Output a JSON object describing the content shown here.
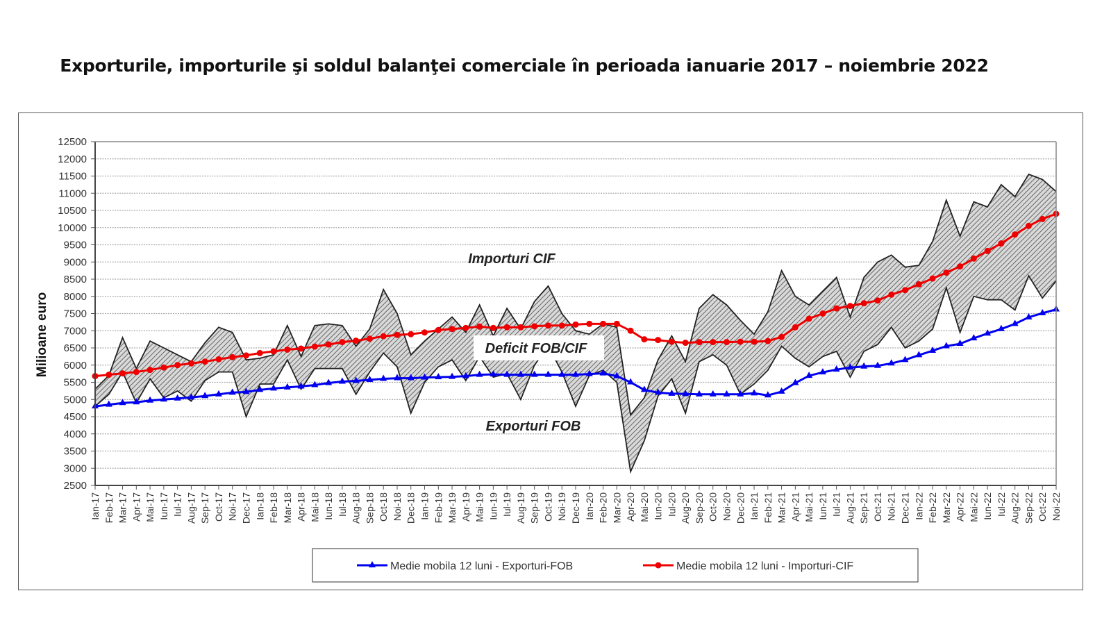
{
  "chart_data": {
    "type": "line",
    "title": "Exporturile, importurile şi soldul balanţei comerciale în perioada ianuarie 2017 – noiembrie 2022",
    "ylabel": "Milioane  euro",
    "xlabel": "",
    "ylim": [
      2500,
      12500
    ],
    "yticks": [
      2500,
      3000,
      3500,
      4000,
      4500,
      5000,
      5500,
      6000,
      6500,
      7000,
      7500,
      8000,
      8500,
      9000,
      9500,
      10000,
      10500,
      11000,
      11500,
      12000,
      12500
    ],
    "grid": true,
    "legend_position": "bottom",
    "categories": [
      "Ian-17",
      "Feb-17",
      "Mar-17",
      "Apr-17",
      "Mai-17",
      "Iun-17",
      "Iul-17",
      "Aug-17",
      "Sep-17",
      "Oct-17",
      "Noi-17",
      "Dec-17",
      "Ian-18",
      "Feb-18",
      "Mar-18",
      "Apr-18",
      "Mai-18",
      "Iun-18",
      "Iul-18",
      "Aug-18",
      "Sep-18",
      "Oct-18",
      "Noi-18",
      "Dec-18",
      "Ian-19",
      "Feb-19",
      "Mar-19",
      "Apr-19",
      "Mai-19",
      "Iun-19",
      "Iul-19",
      "Aug-19",
      "Sep-19",
      "Oct-19",
      "Noi-19",
      "Dec-19",
      "Ian-20",
      "Feb-20",
      "Mar-20",
      "Apr-20",
      "Mai-20",
      "Iun-20",
      "Iul-20",
      "Aug-20",
      "Sep-20",
      "Oct-20",
      "Noi-20",
      "Dec-20",
      "Ian-21",
      "Feb-21",
      "Mar-21",
      "Apr-21",
      "Mai-21",
      "Iun-21",
      "Iul-21",
      "Aug-21",
      "Sep-21",
      "Oct-21",
      "Noi-21",
      "Dec-21",
      "Ian-22",
      "Feb-22",
      "Mar-22",
      "Apr-22",
      "Mai-22",
      "Iun-22",
      "Iul-22",
      "Aug-22",
      "Sep-22",
      "Oct-22",
      "Noi-22"
    ],
    "series": [
      {
        "name": "Importuri CIF",
        "style": "area-boundary",
        "color": "#222222",
        "values": [
          5300,
          5700,
          6800,
          5900,
          6700,
          6500,
          6300,
          6100,
          6650,
          7100,
          6950,
          6150,
          6200,
          6300,
          7150,
          6250,
          7150,
          7200,
          7150,
          6550,
          7050,
          8200,
          7500,
          6300,
          6700,
          7050,
          7400,
          6950,
          7750,
          6850,
          7650,
          7050,
          7850,
          8300,
          7500,
          7000,
          6900,
          7200,
          7100,
          4550,
          5050,
          6150,
          6850,
          6100,
          7650,
          8050,
          7750,
          7300,
          6900,
          7550,
          8750,
          8000,
          7750,
          8150,
          8550,
          7400,
          8550,
          9000,
          9200,
          8850,
          8900,
          9600,
          10800,
          9750,
          10750,
          10600,
          11250,
          10900,
          11550,
          11400,
          11050
        ]
      },
      {
        "name": "Exporturi FOB",
        "style": "area-boundary",
        "color": "#222222",
        "values": [
          4800,
          5150,
          5800,
          4900,
          5600,
          5050,
          5250,
          4950,
          5550,
          5800,
          5800,
          4500,
          5450,
          5450,
          6150,
          5300,
          5900,
          5900,
          5900,
          5150,
          5800,
          6350,
          5950,
          4600,
          5500,
          5950,
          6150,
          5550,
          6250,
          5650,
          5750,
          5000,
          6000,
          6550,
          5800,
          4800,
          5700,
          5850,
          5500,
          2900,
          3800,
          5100,
          5600,
          4600,
          6100,
          6300,
          6000,
          5150,
          5450,
          5850,
          6550,
          6200,
          5950,
          6250,
          6400,
          5650,
          6400,
          6600,
          7100,
          6500,
          6700,
          7050,
          8250,
          6950,
          8000,
          7900,
          7900,
          7600,
          8600,
          7950,
          8450
        ]
      },
      {
        "name": "Medie mobila 12 luni - Exporturi-FOB",
        "style": "line-triangle",
        "color": "#0000ee",
        "values": [
          4800,
          4850,
          4900,
          4920,
          4970,
          5000,
          5030,
          5060,
          5100,
          5150,
          5200,
          5220,
          5280,
          5320,
          5350,
          5380,
          5420,
          5480,
          5520,
          5540,
          5570,
          5600,
          5620,
          5620,
          5640,
          5650,
          5660,
          5680,
          5720,
          5730,
          5720,
          5720,
          5720,
          5720,
          5720,
          5720,
          5740,
          5760,
          5680,
          5500,
          5280,
          5200,
          5170,
          5160,
          5150,
          5150,
          5150,
          5150,
          5180,
          5120,
          5230,
          5480,
          5690,
          5790,
          5870,
          5930,
          5960,
          5980,
          6050,
          6150,
          6290,
          6420,
          6550,
          6620,
          6780,
          6920,
          7050,
          7200,
          7390,
          7510,
          7620
        ]
      },
      {
        "name": "Medie mobila 12 luni - Importuri-CIF",
        "style": "line-circle",
        "color": "#ee0000",
        "values": [
          5680,
          5720,
          5760,
          5800,
          5860,
          5930,
          6000,
          6050,
          6100,
          6170,
          6230,
          6280,
          6350,
          6400,
          6450,
          6480,
          6540,
          6600,
          6670,
          6710,
          6770,
          6840,
          6880,
          6900,
          6950,
          7020,
          7050,
          7080,
          7120,
          7080,
          7100,
          7100,
          7130,
          7150,
          7150,
          7180,
          7200,
          7200,
          7200,
          7000,
          6750,
          6730,
          6680,
          6650,
          6670,
          6670,
          6670,
          6680,
          6680,
          6700,
          6820,
          7100,
          7350,
          7500,
          7650,
          7720,
          7800,
          7880,
          8050,
          8180,
          8350,
          8520,
          8690,
          8870,
          9100,
          9320,
          9540,
          9800,
          10050,
          10250,
          10400
        ]
      }
    ],
    "annotations": [
      "Importuri CIF",
      "Deficit FOB/CIF",
      "Exporturi FOB"
    ],
    "legend": [
      "Medie mobila 12 luni - Exporturi-FOB",
      "Medie mobila 12 luni - Importuri-CIF"
    ]
  },
  "colors": {
    "exports_ma": "#0000ee",
    "imports_ma": "#ee0000",
    "band_fill": "#b8b8b8",
    "band_line": "#222222"
  }
}
